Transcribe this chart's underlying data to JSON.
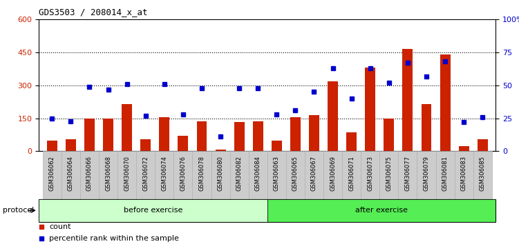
{
  "title": "GDS3503 / 208014_x_at",
  "categories": [
    "GSM306062",
    "GSM306064",
    "GSM306066",
    "GSM306068",
    "GSM306070",
    "GSM306072",
    "GSM306074",
    "GSM306076",
    "GSM306078",
    "GSM306080",
    "GSM306082",
    "GSM306084",
    "GSM306063",
    "GSM306065",
    "GSM306067",
    "GSM306069",
    "GSM306071",
    "GSM306073",
    "GSM306075",
    "GSM306077",
    "GSM306079",
    "GSM306081",
    "GSM306083",
    "GSM306085"
  ],
  "counts": [
    50,
    55,
    150,
    148,
    215,
    55,
    155,
    70,
    135,
    8,
    132,
    135,
    50,
    155,
    165,
    320,
    85,
    380,
    150,
    465,
    215,
    440,
    25,
    55
  ],
  "percentile_raw": [
    25,
    23,
    49,
    47,
    51,
    27,
    51,
    28,
    48,
    11,
    48,
    48,
    28,
    31,
    45,
    63,
    40,
    63,
    52,
    67,
    57,
    68,
    22,
    26
  ],
  "bar_color": "#cc2200",
  "dot_color": "#0000cc",
  "before_count": 12,
  "before_label": "before exercise",
  "after_label": "after exercise",
  "protocol_label": "protocol",
  "legend_count_label": "count",
  "legend_pct_label": "percentile rank within the sample",
  "ylim_left": [
    0,
    600
  ],
  "ylim_right": [
    0,
    100
  ],
  "yticks_left": [
    0,
    150,
    300,
    450,
    600
  ],
  "yticks_right": [
    0,
    25,
    50,
    75,
    100
  ],
  "grid_values": [
    150,
    300,
    450
  ],
  "before_color": "#ccffcc",
  "after_color": "#55ee55",
  "bar_width": 0.55
}
